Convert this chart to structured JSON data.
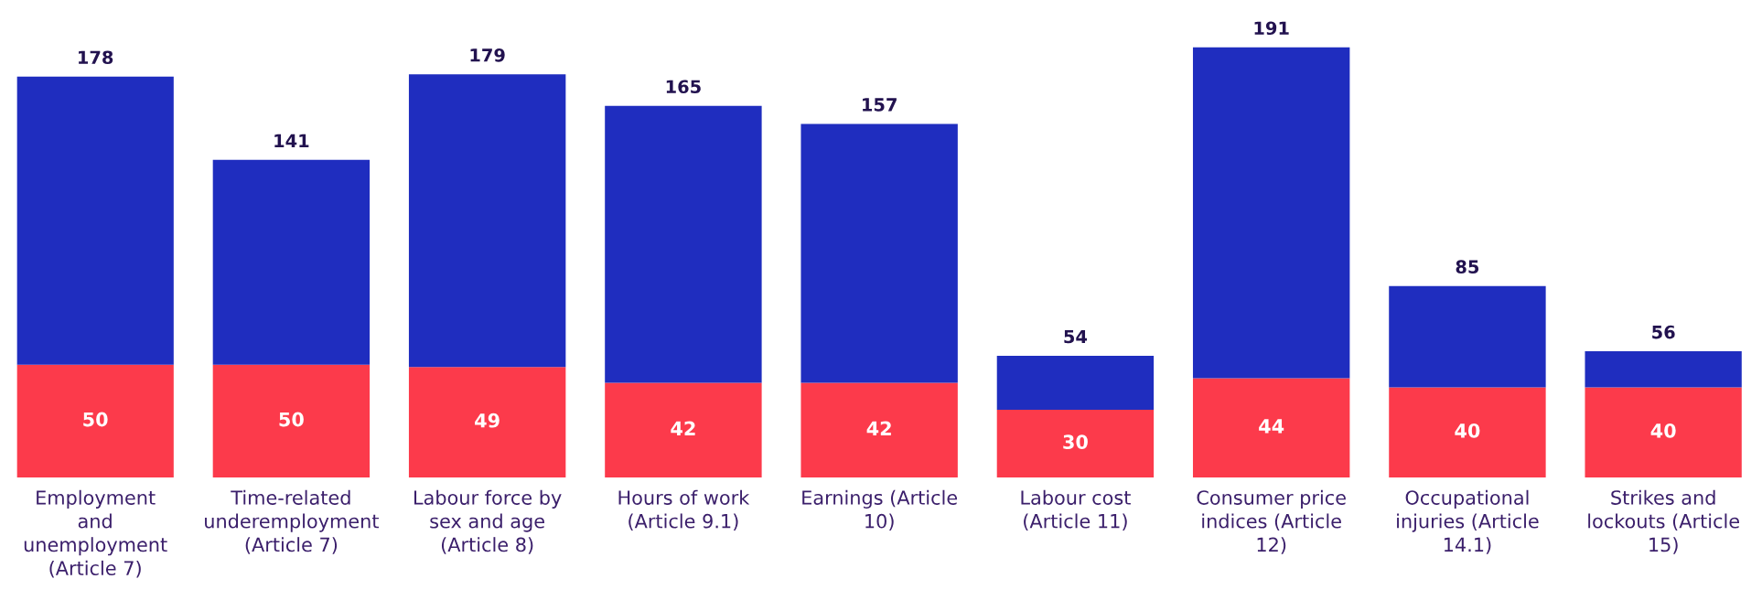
{
  "chart_data": {
    "type": "bar",
    "stacked": true,
    "categories": [
      "Employment\nand\nunemployment\n(Article 7)",
      "Time-related\nunderemployment\n(Article 7)",
      "Labour force by\nsex and age\n(Article 8)",
      "Hours of work\n(Article 9.1)",
      "Earnings (Article\n10)",
      "Labour cost\n(Article 11)",
      "Consumer price\nindices (Article\n12)",
      "Occupational\ninjuries (Article\n14.1)",
      "Strikes and\nlockouts (Article\n15)"
    ],
    "series": [
      {
        "color": "#fc3a4b",
        "values": [
          50,
          50,
          49,
          42,
          42,
          30,
          44,
          40,
          40
        ],
        "value_labels": [
          "50",
          "50",
          "49",
          "42",
          "42",
          "30",
          "44",
          "40",
          "40"
        ]
      },
      {
        "color": "#1f2dbf",
        "values": [
          128,
          91,
          130,
          123,
          115,
          24,
          147,
          45,
          16
        ]
      }
    ],
    "totals": [
      "178",
      "141",
      "179",
      "165",
      "157",
      "54",
      "191",
      "85",
      "56"
    ],
    "grid": false
  }
}
